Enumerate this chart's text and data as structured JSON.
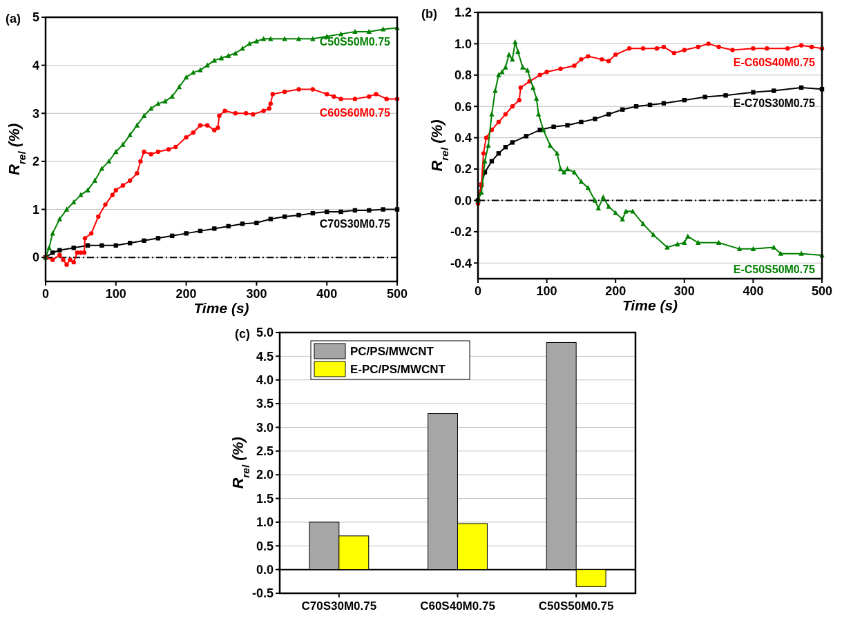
{
  "chart_data": [
    {
      "type": "line",
      "title": "(a)",
      "xlabel": "Time (s)",
      "ylabel": "R$_{rel}$ (%)",
      "xlim": [
        0,
        500
      ],
      "xticks": [
        0,
        100,
        200,
        300,
        400,
        500
      ],
      "ylim": [
        -0.5,
        5
      ],
      "yticks": [
        0,
        1,
        2,
        3,
        4,
        5
      ],
      "grid": "y",
      "legend": false,
      "ref_lines": [
        {
          "axis": "y",
          "value": 0,
          "label": null,
          "color": "#000000",
          "line_style": "dashed"
        }
      ],
      "series": [
        {
          "name": "C70S30M0.75",
          "color": "#000000",
          "marker": "square",
          "x": [
            0,
            10,
            20,
            40,
            60,
            80,
            100,
            120,
            140,
            160,
            180,
            200,
            220,
            240,
            260,
            280,
            300,
            320,
            340,
            360,
            380,
            400,
            420,
            440,
            460,
            480,
            500
          ],
          "values": [
            0,
            0.1,
            0.15,
            0.2,
            0.25,
            0.25,
            0.25,
            0.3,
            0.35,
            0.4,
            0.45,
            0.5,
            0.55,
            0.6,
            0.65,
            0.7,
            0.72,
            0.8,
            0.85,
            0.88,
            0.92,
            0.95,
            0.95,
            0.98,
            0.98,
            1.0,
            1.0
          ]
        },
        {
          "name": "C60S60M0.75",
          "color": "#ff0000",
          "marker": "circle",
          "x": [
            0,
            10,
            20,
            25,
            30,
            35,
            40,
            45,
            50,
            55,
            56,
            65,
            75,
            85,
            95,
            100,
            110,
            120,
            130,
            135,
            140,
            150,
            160,
            175,
            185,
            200,
            210,
            220,
            230,
            240,
            245,
            247,
            255,
            270,
            285,
            295,
            310,
            318,
            320,
            323,
            340,
            360,
            380,
            400,
            410,
            420,
            440,
            460,
            470,
            485,
            500
          ],
          "values": [
            0,
            -0.05,
            0.05,
            -0.05,
            -0.15,
            -0.05,
            -0.1,
            0.1,
            0.1,
            0.1,
            0.4,
            0.5,
            0.85,
            1.1,
            1.3,
            1.4,
            1.5,
            1.6,
            1.75,
            2.0,
            2.2,
            2.15,
            2.2,
            2.25,
            2.3,
            2.5,
            2.6,
            2.75,
            2.75,
            2.65,
            2.7,
            2.95,
            3.05,
            3.0,
            3.0,
            2.98,
            3.05,
            3.1,
            3.2,
            3.4,
            3.45,
            3.5,
            3.5,
            3.4,
            3.35,
            3.3,
            3.3,
            3.35,
            3.4,
            3.3,
            3.3
          ]
        },
        {
          "name": "C50S50M0.75",
          "color": "#008000",
          "marker": "triangle",
          "x": [
            0,
            5,
            10,
            20,
            30,
            40,
            50,
            60,
            70,
            80,
            90,
            100,
            110,
            120,
            130,
            140,
            150,
            160,
            170,
            180,
            190,
            200,
            210,
            220,
            230,
            240,
            250,
            260,
            270,
            280,
            290,
            300,
            310,
            320,
            340,
            360,
            380,
            400,
            420,
            440,
            460,
            480,
            500
          ],
          "values": [
            0,
            0.2,
            0.5,
            0.8,
            1.0,
            1.15,
            1.3,
            1.4,
            1.6,
            1.85,
            2.0,
            2.2,
            2.35,
            2.55,
            2.75,
            2.95,
            3.1,
            3.2,
            3.25,
            3.35,
            3.55,
            3.75,
            3.85,
            3.9,
            4.0,
            4.1,
            4.15,
            4.2,
            4.25,
            4.35,
            4.45,
            4.5,
            4.55,
            4.55,
            4.55,
            4.55,
            4.55,
            4.6,
            4.65,
            4.7,
            4.7,
            4.75,
            4.78
          ]
        }
      ]
    },
    {
      "type": "line",
      "title": "(b)",
      "xlabel": "Time (s)",
      "ylabel": "R$_{rel}$ (%)",
      "xlim": [
        0,
        500
      ],
      "xticks": [
        0,
        100,
        200,
        300,
        400,
        500
      ],
      "ylim": [
        -0.5,
        1.2
      ],
      "yticks": [
        {
          "value": -0.4,
          "label": "-0.4"
        },
        {
          "value": -0.2,
          "label": "-0.2"
        },
        {
          "value": 0,
          "label": "0.0"
        },
        {
          "value": 0.2,
          "label": "0.2"
        },
        {
          "value": 0.4,
          "label": "0.4"
        },
        {
          "value": 0.6,
          "label": "0.6"
        },
        {
          "value": 0.8,
          "label": "0.8"
        },
        {
          "value": 1,
          "label": "1.0"
        },
        {
          "value": 1.2,
          "label": "1.2"
        }
      ],
      "grid": "y",
      "legend": false,
      "ref_lines": [
        {
          "axis": "y",
          "value": 0,
          "label": null,
          "color": "#000000",
          "line_style": "dashed"
        }
      ],
      "series": [
        {
          "name": "E-C70S30M0.75",
          "color": "#000000",
          "marker": "square",
          "x": [
            0,
            5,
            10,
            20,
            30,
            40,
            50,
            70,
            90,
            110,
            130,
            150,
            170,
            190,
            210,
            230,
            250,
            270,
            300,
            330,
            360,
            400,
            430,
            470,
            500
          ],
          "values": [
            0,
            0.1,
            0.18,
            0.25,
            0.3,
            0.34,
            0.37,
            0.41,
            0.45,
            0.47,
            0.48,
            0.5,
            0.52,
            0.55,
            0.58,
            0.6,
            0.61,
            0.62,
            0.64,
            0.66,
            0.67,
            0.69,
            0.7,
            0.72,
            0.71
          ]
        },
        {
          "name": "E-C60S40M0.75",
          "color": "#ff0000",
          "marker": "circle",
          "x": [
            0,
            5,
            8,
            12,
            20,
            30,
            40,
            50,
            60,
            62,
            75,
            90,
            100,
            120,
            140,
            150,
            160,
            180,
            190,
            200,
            220,
            240,
            260,
            270,
            285,
            300,
            320,
            335,
            350,
            370,
            400,
            420,
            450,
            470,
            485,
            500
          ],
          "values": [
            -0.02,
            0.1,
            0.3,
            0.4,
            0.45,
            0.5,
            0.55,
            0.6,
            0.64,
            0.72,
            0.76,
            0.8,
            0.82,
            0.84,
            0.86,
            0.9,
            0.92,
            0.9,
            0.89,
            0.93,
            0.97,
            0.97,
            0.97,
            0.98,
            0.94,
            0.96,
            0.98,
            1.0,
            0.98,
            0.96,
            0.97,
            0.97,
            0.97,
            0.99,
            0.98,
            0.97
          ]
        },
        {
          "name": "E-C50S50M0.75",
          "color": "#008000",
          "marker": "triangle",
          "x": [
            0,
            5,
            10,
            15,
            20,
            25,
            30,
            35,
            40,
            45,
            50,
            54,
            58,
            65,
            72,
            80,
            85,
            88,
            95,
            105,
            115,
            120,
            125,
            130,
            140,
            150,
            160,
            170,
            175,
            182,
            190,
            200,
            210,
            215,
            225,
            240,
            255,
            275,
            290,
            300,
            305,
            320,
            350,
            380,
            400,
            430,
            440,
            470,
            500
          ],
          "values": [
            0,
            0.05,
            0.25,
            0.35,
            0.55,
            0.7,
            0.8,
            0.82,
            0.85,
            0.93,
            0.9,
            1.01,
            0.95,
            0.85,
            0.83,
            0.72,
            0.65,
            0.55,
            0.45,
            0.35,
            0.3,
            0.2,
            0.18,
            0.2,
            0.18,
            0.12,
            0.08,
            0.0,
            -0.05,
            0.02,
            -0.04,
            -0.08,
            -0.12,
            -0.07,
            -0.07,
            -0.15,
            -0.22,
            -0.3,
            -0.28,
            -0.27,
            -0.23,
            -0.27,
            -0.27,
            -0.31,
            -0.31,
            -0.3,
            -0.34,
            -0.34,
            -0.35
          ]
        }
      ]
    },
    {
      "type": "bar",
      "title": "(c)",
      "ylabel": "R$_{rel}$ (%)",
      "categories": [
        "C70S30M0.75",
        "C60S40M0.75",
        "C50S50M0.75"
      ],
      "ylim": [
        -0.5,
        5
      ],
      "yticks": [
        {
          "value": -0.5,
          "label": "-0.5"
        },
        {
          "value": 0,
          "label": "0.0"
        },
        {
          "value": 0.5,
          "label": "0.5"
        },
        {
          "value": 1,
          "label": "1.0"
        },
        {
          "value": 1.5,
          "label": "1.5"
        },
        {
          "value": 2,
          "label": "2.0"
        },
        {
          "value": 2.5,
          "label": "2.5"
        },
        {
          "value": 3,
          "label": "3.0"
        },
        {
          "value": 3.5,
          "label": "3.5"
        },
        {
          "value": 4,
          "label": "4.0"
        },
        {
          "value": 4.5,
          "label": "4.5"
        },
        {
          "value": 5,
          "label": "5.0"
        }
      ],
      "grid": "y",
      "legend": "top left",
      "series": [
        {
          "name": "PC/PS/MWCNT",
          "color": "#a6a6a6",
          "values": [
            1.0,
            3.29,
            4.79
          ]
        },
        {
          "name": "E-PC/PS/MWCNT",
          "color": "#ffff00",
          "values": [
            0.71,
            0.97,
            -0.36
          ]
        }
      ]
    }
  ]
}
